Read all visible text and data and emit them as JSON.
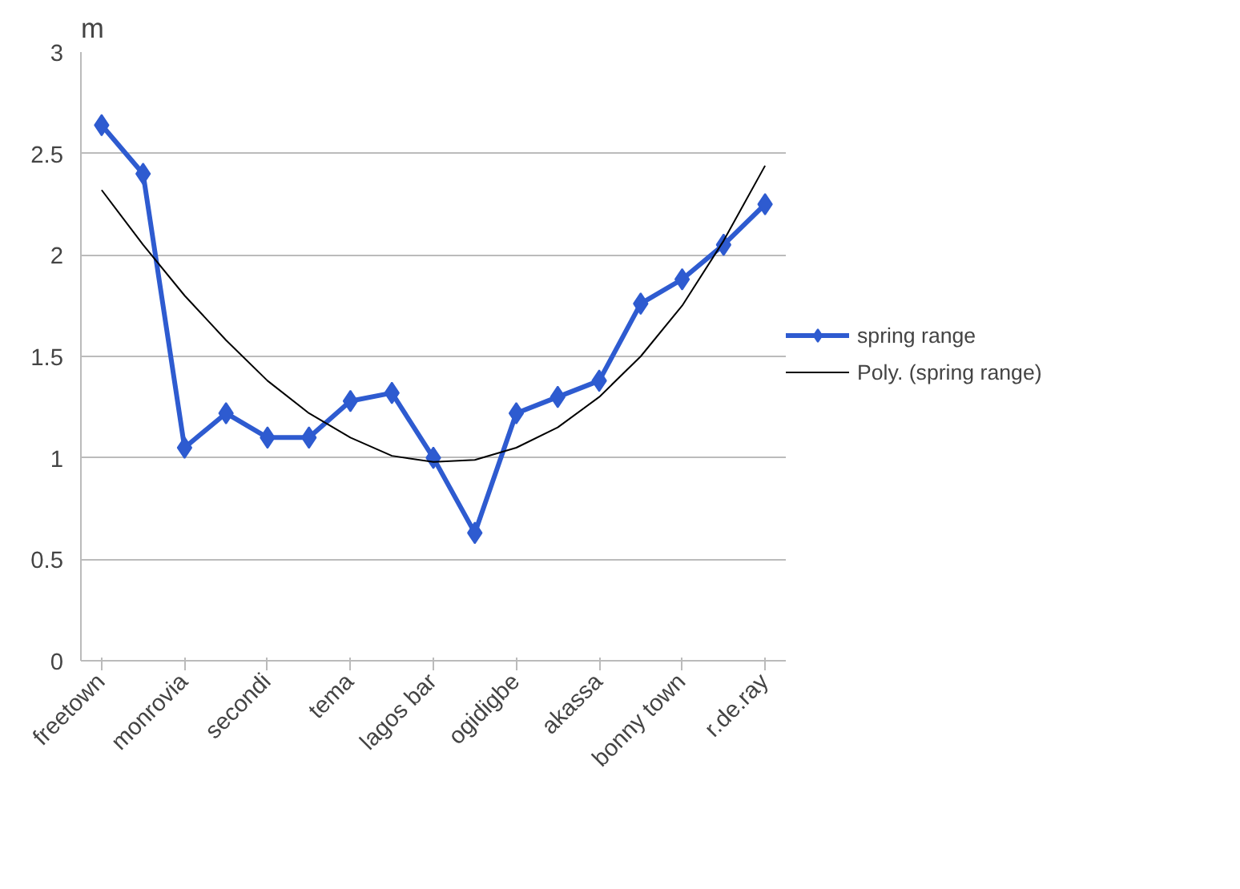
{
  "chart_data": {
    "type": "line",
    "ylabel": "m",
    "categories": [
      "freetown",
      null,
      "monrovia",
      null,
      "secondi",
      null,
      "tema",
      null,
      "lagos bar",
      null,
      "ogidigbe",
      null,
      "akassa",
      null,
      "bonny town",
      null,
      "r.de.ray"
    ],
    "series": [
      {
        "name": "spring range",
        "color": "#2e5bd0",
        "marker": "diamond",
        "line_style": "solid",
        "values": [
          2.64,
          2.4,
          1.05,
          1.22,
          1.1,
          1.1,
          1.28,
          1.32,
          1.0,
          0.63,
          1.22,
          1.3,
          1.38,
          1.76,
          1.88,
          2.05,
          2.25
        ]
      },
      {
        "name": "Poly. (spring range)",
        "color": "#000000",
        "marker": "none",
        "line_style": "solid",
        "values": [
          2.32,
          2.05,
          1.8,
          1.58,
          1.38,
          1.22,
          1.1,
          1.01,
          0.98,
          0.99,
          1.05,
          1.15,
          1.3,
          1.5,
          1.75,
          2.07,
          2.44
        ]
      }
    ],
    "ylim": [
      0,
      3
    ],
    "yticks": [
      0,
      0.5,
      1,
      1.5,
      2,
      2.5,
      3
    ],
    "grid": "y",
    "legend": "right"
  }
}
